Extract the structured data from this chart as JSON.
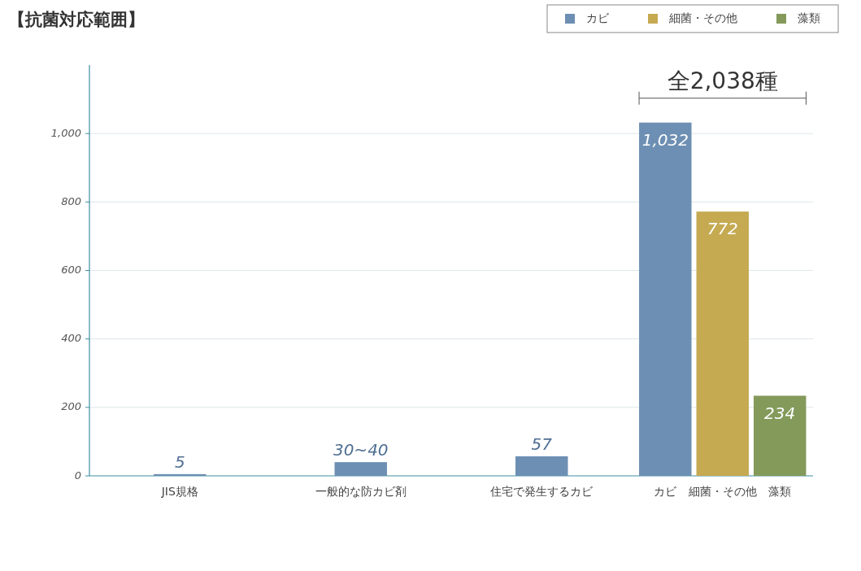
{
  "chart_data": {
    "type": "bar",
    "title": "【抗菌対応範囲】",
    "categories": [
      "JIS規格",
      "一般的な防カビ剤",
      "住宅で発生するカビ",
      null
    ],
    "series": [
      {
        "name": "カビ",
        "color": "#6d8fb3",
        "values": [
          5,
          40,
          57,
          1032
        ],
        "value_labels": [
          "5",
          "30~40",
          "57",
          "1,032"
        ]
      },
      {
        "name": "細菌・その他",
        "color": "#c5aa52",
        "values": [
          null,
          null,
          null,
          772
        ],
        "value_labels": [
          null,
          null,
          null,
          "772"
        ]
      },
      {
        "name": "藻類",
        "color": "#839a5a",
        "values": [
          null,
          null,
          null,
          234
        ],
        "value_labels": [
          null,
          null,
          null,
          "234"
        ]
      }
    ],
    "ylim": [
      0,
      1200
    ],
    "yticks": [
      0,
      200,
      400,
      600,
      800,
      {
        "value": 1000,
        "label": "1,000"
      }
    ],
    "grid": "y",
    "legend": "top right",
    "annotations": [
      "全2,038種"
    ]
  }
}
